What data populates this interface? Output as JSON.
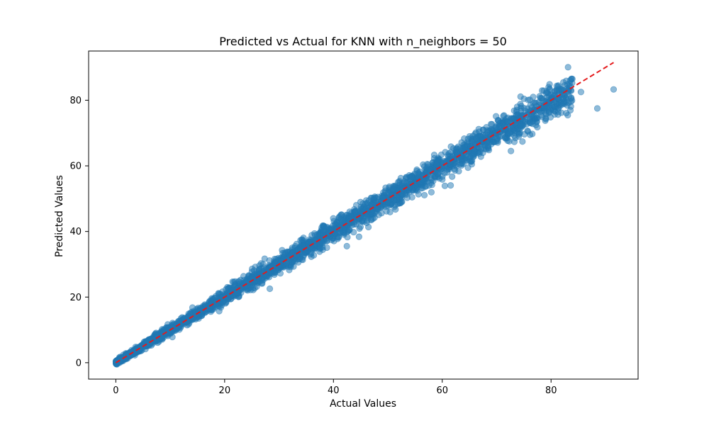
{
  "chart_data": {
    "type": "scatter",
    "title": "Predicted vs Actual for KNN with n_neighbors = 50",
    "xlabel": "Actual Values",
    "ylabel": "Predicted Values",
    "xlim": [
      -5,
      96
    ],
    "ylim": [
      -5,
      95
    ],
    "xticks": [
      0,
      20,
      40,
      60,
      80
    ],
    "yticks": [
      0,
      20,
      40,
      60,
      80
    ],
    "grid": false,
    "legend": null,
    "scatter_color": "#1f77b4",
    "scatter_alpha": 0.5,
    "series": [
      {
        "kind": "scatter",
        "x_range": [
          0,
          91.5
        ],
        "trend": "y ≈ x",
        "approx_points": [
          {
            "x": 0,
            "y": 0
          },
          {
            "x": 10,
            "y": 10
          },
          {
            "x": 20,
            "y": 20
          },
          {
            "x": 30,
            "y": 30
          },
          {
            "x": 40,
            "y": 40
          },
          {
            "x": 50,
            "y": 50
          },
          {
            "x": 60,
            "y": 59
          },
          {
            "x": 70,
            "y": 68
          },
          {
            "x": 80,
            "y": 78
          },
          {
            "x": 85.5,
            "y": 82.5
          },
          {
            "x": 88.5,
            "y": 77.5
          },
          {
            "x": 91.5,
            "y": 83.3
          },
          {
            "x": 82.5,
            "y": 84.5
          },
          {
            "x": 74.5,
            "y": 82
          }
        ],
        "spread_std_by_x": [
          {
            "x": 0,
            "std": 0.3
          },
          {
            "x": 20,
            "std": 1.2
          },
          {
            "x": 40,
            "std": 1.7
          },
          {
            "x": 60,
            "std": 2.0
          },
          {
            "x": 80,
            "std": 2.6
          }
        ]
      },
      {
        "kind": "line",
        "style": "dashed",
        "color": "#e41a1c",
        "x": [
          0,
          91.5
        ],
        "y": [
          0,
          91.5
        ]
      }
    ]
  }
}
